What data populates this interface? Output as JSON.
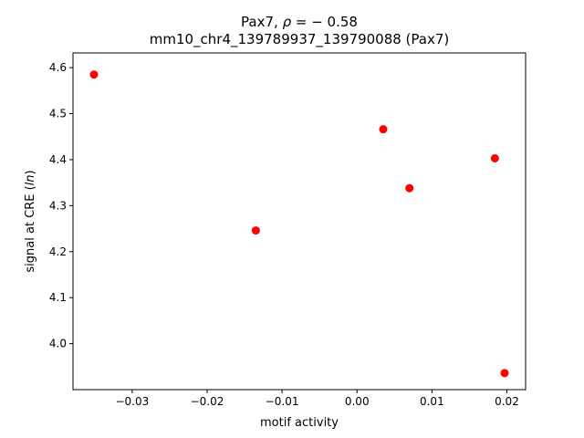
{
  "chart_data": {
    "type": "scatter",
    "title_prefix": "Pax7, ",
    "title_rho_symbol": "ρ",
    "title_rho_value": " = − 0.58",
    "subtitle": "mm10_chr4_139789937_139790088 (Pax7)",
    "xlabel": "motif activity",
    "ylabel_prefix": "signal at CRE (",
    "ylabel_italic": "ln",
    "ylabel_suffix": ")",
    "xlim": [
      -0.0379,
      0.0225
    ],
    "ylim": [
      3.9,
      4.632
    ],
    "x_ticks": [
      -0.03,
      -0.02,
      -0.01,
      0.0,
      0.01,
      0.02
    ],
    "x_tick_labels": [
      "−0.03",
      "−0.02",
      "−0.01",
      "0.00",
      "0.01",
      "0.02"
    ],
    "y_ticks": [
      4.0,
      4.1,
      4.2,
      4.3,
      4.4,
      4.5,
      4.6
    ],
    "y_tick_labels": [
      "4.0",
      "4.1",
      "4.2",
      "4.3",
      "4.4",
      "4.5",
      "4.6"
    ],
    "grid": false,
    "marker_color": "#ff0000",
    "points": [
      {
        "x": -0.0351,
        "y": 4.585
      },
      {
        "x": -0.0135,
        "y": 4.246
      },
      {
        "x": 0.0035,
        "y": 4.466
      },
      {
        "x": 0.007,
        "y": 4.338
      },
      {
        "x": 0.0184,
        "y": 4.403
      },
      {
        "x": 0.0197,
        "y": 3.936
      }
    ]
  }
}
